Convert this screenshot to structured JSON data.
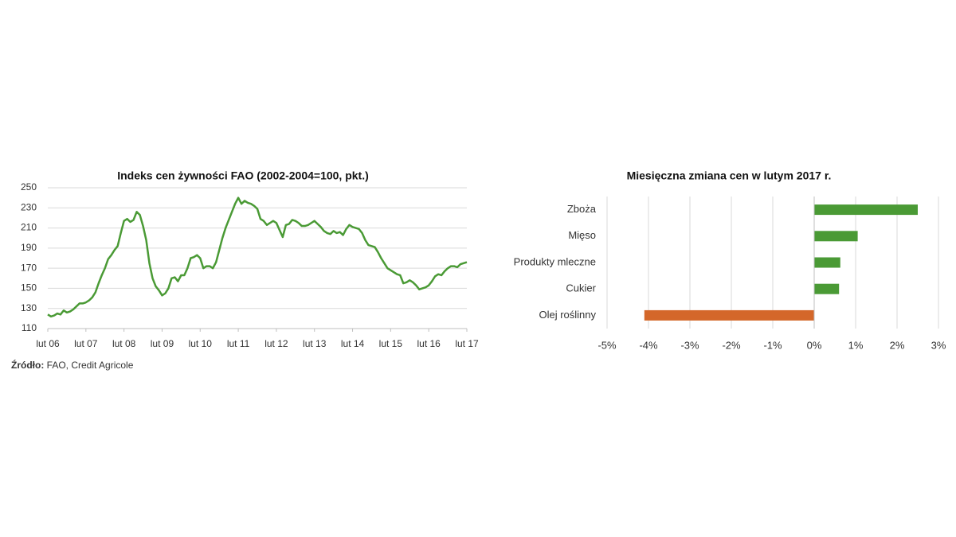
{
  "chart_data": [
    {
      "type": "line",
      "title": "Indeks cen żywności FAO (2002-2004=100, pkt.)",
      "categories": [
        "lut 06",
        null,
        null,
        null,
        null,
        null,
        null,
        null,
        null,
        null,
        null,
        null,
        "lut 07",
        null,
        null,
        null,
        null,
        null,
        null,
        null,
        null,
        null,
        null,
        null,
        "lut 08",
        null,
        null,
        null,
        null,
        null,
        null,
        null,
        null,
        null,
        null,
        null,
        "lut 09",
        null,
        null,
        null,
        null,
        null,
        null,
        null,
        null,
        null,
        null,
        null,
        "lut 10",
        null,
        null,
        null,
        null,
        null,
        null,
        null,
        null,
        null,
        null,
        null,
        "lut 11",
        null,
        null,
        null,
        null,
        null,
        null,
        null,
        null,
        null,
        null,
        null,
        "lut 12",
        null,
        null,
        null,
        null,
        null,
        null,
        null,
        null,
        null,
        null,
        null,
        "lut 13",
        null,
        null,
        null,
        null,
        null,
        null,
        null,
        null,
        null,
        null,
        null,
        "lut 14",
        null,
        null,
        null,
        null,
        null,
        null,
        null,
        null,
        null,
        null,
        null,
        "lut 15",
        null,
        null,
        null,
        null,
        null,
        null,
        null,
        null,
        null,
        null,
        null,
        "lut 16",
        null,
        null,
        null,
        null,
        null,
        null,
        null,
        null,
        null,
        null,
        null,
        "lut 17"
      ],
      "values": [
        124,
        122,
        123,
        125,
        124,
        128,
        126,
        127,
        129,
        132,
        135,
        135,
        136,
        138,
        141,
        146,
        155,
        163,
        170,
        179,
        183,
        188,
        192,
        205,
        217,
        219,
        216,
        218,
        226,
        223,
        212,
        198,
        175,
        160,
        152,
        148,
        143,
        145,
        150,
        160,
        161,
        157,
        163,
        163,
        170,
        180,
        181,
        183,
        180,
        170,
        172,
        172,
        170,
        176,
        188,
        200,
        210,
        218,
        226,
        234,
        240,
        234,
        237,
        235,
        234,
        232,
        229,
        219,
        217,
        213,
        215,
        217,
        215,
        208,
        201,
        213,
        214,
        218,
        217,
        215,
        212,
        212,
        213,
        215,
        217,
        214,
        211,
        207,
        205,
        204,
        207,
        205,
        206,
        203,
        209,
        213,
        211,
        210,
        209,
        205,
        198,
        193,
        192,
        191,
        186,
        180,
        175,
        170,
        168,
        166,
        164,
        163,
        155,
        156,
        158,
        156,
        153,
        149,
        150,
        151,
        153,
        157,
        162,
        164,
        163,
        167,
        170,
        172,
        172,
        171,
        174,
        175,
        176
      ],
      "color": "#4a9a35",
      "ylim": [
        110,
        250
      ],
      "yticks": [
        110,
        130,
        150,
        170,
        190,
        210,
        230,
        250
      ],
      "grid": true
    },
    {
      "type": "hbar",
      "title": "Miesięczna zmiana cen w lutym 2017 r.",
      "categories": [
        "Zboża",
        "Mięso",
        "Produkty mleczne",
        "Cukier",
        "Olej roślinny"
      ],
      "values": [
        2.5,
        1.05,
        0.63,
        0.6,
        -4.1
      ],
      "colors": [
        "#4a9a35",
        "#4a9a35",
        "#4a9a35",
        "#4a9a35",
        "#d4672a"
      ],
      "xlim": [
        -5,
        3
      ],
      "xticks": [
        {
          "value": -5,
          "label": "-5%"
        },
        {
          "value": -4,
          "label": "-4%"
        },
        {
          "value": -3,
          "label": "-3%"
        },
        {
          "value": -2,
          "label": "-2%"
        },
        {
          "value": -1,
          "label": "-1%"
        },
        {
          "value": 0,
          "label": "0%"
        },
        {
          "value": 1,
          "label": "1%"
        },
        {
          "value": 2,
          "label": "2%"
        },
        {
          "value": 3,
          "label": "3%"
        }
      ],
      "grid": true
    }
  ],
  "source": {
    "label": "Źródło:",
    "text": "FAO, Credit Agricole"
  }
}
